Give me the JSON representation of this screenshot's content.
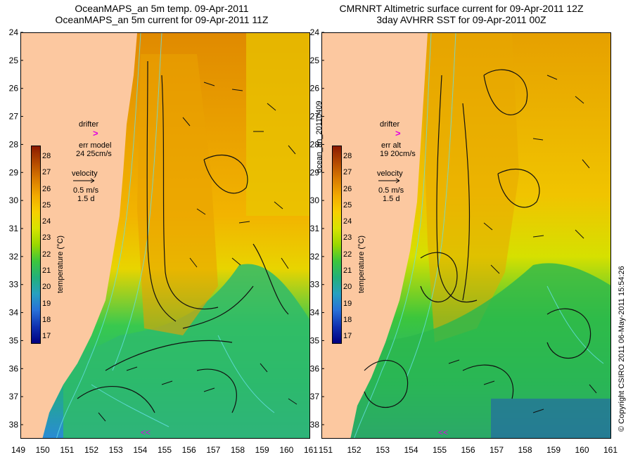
{
  "titles": {
    "left_line1": "OceanMAPS_an 5m temp. 09-Apr-2011",
    "left_line2": "OceanMAPS_an 5m current for 09-Apr-2011 11Z",
    "right_line1": "CMRNRT Altimetric surface current for 09-Apr-2011 12Z",
    "right_line2": "3day AVHRR SST for 09-Apr-2011 00Z"
  },
  "axes": {
    "lat_ticks": [
      "24",
      "25",
      "26",
      "27",
      "28",
      "29",
      "30",
      "31",
      "32",
      "33",
      "34",
      "35",
      "36",
      "37",
      "38"
    ],
    "lon_ticks_left": [
      "149",
      "150",
      "151",
      "152",
      "153",
      "154",
      "155",
      "156",
      "157",
      "158",
      "159",
      "160",
      "161"
    ],
    "lon_ticks_right": [
      "152",
      "153",
      "154",
      "155",
      "156",
      "157",
      "158",
      "159",
      "160",
      "161"
    ],
    "lon_first_right": "151"
  },
  "legend_left": {
    "drifter": "drifter",
    "err_label": "err model",
    "err_values": "24 25cm/s",
    "velocity": "velocity",
    "speed": "0.5 m/s",
    "duration": "1.5 d"
  },
  "legend_right": {
    "drifter": "drifter",
    "err_label": "err alt",
    "err_values": "19 20cm/s",
    "velocity": "velocity",
    "speed": "0.5 m/s",
    "duration": "1.5 d"
  },
  "colorbar": {
    "ticks": [
      "28",
      "27",
      "26",
      "25",
      "24",
      "23",
      "22",
      "21",
      "20",
      "19",
      "18",
      "17"
    ],
    "label": "temperature (°C)",
    "colors": [
      "#8b1a00",
      "#b44a00",
      "#d97a00",
      "#f2a900",
      "#f7cf00",
      "#d8e400",
      "#9bd800",
      "#3cc63c",
      "#22b07a",
      "#27a0c0",
      "#2870d8",
      "#1030b0",
      "#000080"
    ]
  },
  "side_texts": {
    "file_label": "ocean_an_20110409",
    "copyright": "© Copyright CSIRO 2011   06-May-2011 15:54:26"
  },
  "map_colors": {
    "land": "#fcc8a0",
    "warm": "#f2a900",
    "warm_orange": "#e08a00",
    "mid_yellow": "#e8d400",
    "yellow_green": "#b8dc1a",
    "green": "#39c94e",
    "cool_green": "#1fb27a",
    "cyan": "#27a6c4",
    "blue": "#2a7ae0",
    "contour": "#66e0e6",
    "drifter": "#e000e0"
  }
}
